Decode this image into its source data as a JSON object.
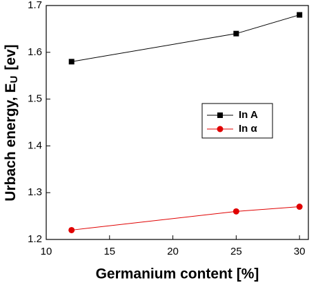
{
  "chart_data": {
    "type": "line",
    "xlabel": "Germanium content [%]",
    "ylabel": "Urbach energy, E",
    "ylabel_sub": "U",
    "ylabel_unit": "[ev]",
    "x": [
      12,
      25,
      30
    ],
    "series": [
      {
        "name": "In A",
        "color": "#000000",
        "marker": "square",
        "values": [
          1.58,
          1.64,
          1.68
        ]
      },
      {
        "name": "In α",
        "color": "#e00000",
        "marker": "circle",
        "values": [
          1.22,
          1.26,
          1.27
        ]
      }
    ],
    "xlim": [
      10,
      30.7
    ],
    "xticks": [
      10,
      15,
      20,
      25,
      30
    ],
    "ylim": [
      1.2,
      1.7
    ],
    "yticks": [
      1.2,
      1.3,
      1.4,
      1.5,
      1.6,
      1.7
    ],
    "grid": false,
    "legend": "right"
  }
}
